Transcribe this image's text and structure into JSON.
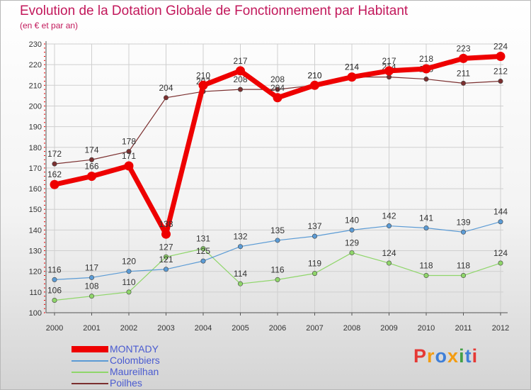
{
  "header": {
    "title": "Evolution de la Dotation Globale de Fonctionnement par Habitant",
    "subtitle": "(en € et par an)"
  },
  "logo": {
    "text": "Proxiti",
    "letters": [
      {
        "ch": "P",
        "color": "#e53935"
      },
      {
        "ch": "r",
        "color": "#f39c12"
      },
      {
        "ch": "o",
        "color": "#3f7fd8"
      },
      {
        "ch": "x",
        "color": "#f39c12"
      },
      {
        "ch": "i",
        "color": "#43a047"
      },
      {
        "ch": "t",
        "color": "#3f7fd8"
      },
      {
        "ch": "i",
        "color": "#e53935"
      }
    ]
  },
  "chart_data": {
    "type": "line",
    "title": "Evolution de la Dotation Globale de Fonctionnement par Habitant",
    "subtitle": "(en € et par an)",
    "xlabel": "",
    "ylabel": "",
    "ylim": [
      100,
      230
    ],
    "yticks": [
      100,
      110,
      120,
      130,
      140,
      150,
      160,
      170,
      180,
      190,
      200,
      210,
      220,
      230
    ],
    "grid": true,
    "legend_position": "bottom-left",
    "categories": [
      "2000",
      "2001",
      "2002",
      "2003",
      "2004",
      "2005",
      "2006",
      "2007",
      "2008",
      "2009",
      "2010",
      "2011",
      "2012"
    ],
    "series": [
      {
        "name": "Poilhes",
        "color": "#7b2f2f",
        "values": [
          172,
          174,
          178,
          204,
          207,
          208,
          208,
          210,
          214,
          214,
          213,
          211,
          212
        ],
        "labels": [
          "172",
          "174",
          "178",
          "204",
          "207",
          "208",
          "208",
          "210",
          "214",
          "214",
          "213",
          "211",
          "212"
        ]
      },
      {
        "name": "Maureilhan",
        "color": "#8fd66a",
        "values": [
          106,
          108,
          110,
          127,
          131,
          114,
          116,
          119,
          129,
          124,
          118,
          118,
          124
        ],
        "labels": [
          "106",
          "108",
          "110",
          "127",
          "131",
          "114",
          "116",
          "119",
          "129",
          "124",
          "118",
          "118",
          "124"
        ]
      },
      {
        "name": "Colombiers",
        "color": "#5b9bd5",
        "values": [
          116,
          117,
          120,
          121,
          125,
          132,
          135,
          137,
          140,
          142,
          141,
          139,
          144
        ],
        "labels": [
          "116",
          "117",
          "120",
          "121",
          "125",
          "132",
          "135",
          "137",
          "140",
          "142",
          "141",
          "139",
          "144"
        ]
      },
      {
        "name": "MONTADY",
        "color": "#ee0000",
        "values": [
          162,
          166,
          171,
          138,
          210,
          217,
          204,
          210,
          214,
          217,
          218,
          223,
          224
        ],
        "labels": [
          "162",
          "166",
          "171",
          "138",
          "210",
          "217",
          "204",
          "210",
          "214",
          "217",
          "218",
          "223",
          "224"
        ]
      }
    ],
    "legend": [
      {
        "name": "MONTADY",
        "color": "#ee0000"
      },
      {
        "name": "Colombiers",
        "color": "#5b9bd5"
      },
      {
        "name": "Maureilhan",
        "color": "#8fd66a"
      },
      {
        "name": "Poilhes",
        "color": "#7b2f2f"
      }
    ]
  }
}
